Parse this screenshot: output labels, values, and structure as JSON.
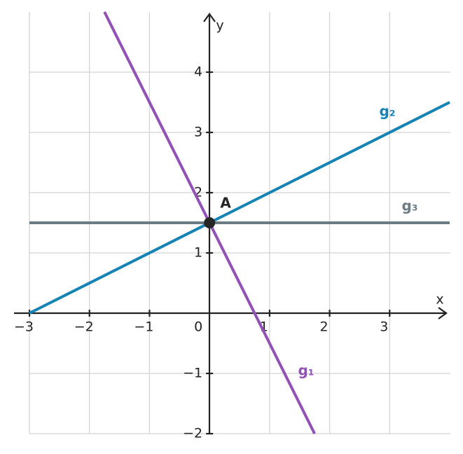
{
  "chart_data": {
    "type": "line",
    "xlabel": "x",
    "ylabel": "y",
    "xlim": [
      -3,
      4
    ],
    "ylim": [
      -2,
      5
    ],
    "xticks": [
      {
        "value": -3,
        "label": "−3"
      },
      {
        "value": -2,
        "label": "−2"
      },
      {
        "value": -1,
        "label": "−1"
      },
      0,
      1,
      2,
      3
    ],
    "yticks": [
      {
        "value": -2,
        "label": "−2"
      },
      {
        "value": -1,
        "label": "−1"
      },
      1,
      2,
      3,
      4
    ],
    "grid": true,
    "series": [
      {
        "name": "g₁",
        "color": "#9351b8",
        "x": [
          -1.75,
          1.75
        ],
        "values": [
          5,
          -2
        ]
      },
      {
        "name": "g₂",
        "color": "#1683b5",
        "x": [
          -3,
          4
        ],
        "values": [
          0,
          3.5
        ]
      },
      {
        "name": "g₃",
        "color": "#6b7c85",
        "x": [
          -3,
          4
        ],
        "values": [
          1.5,
          1.5
        ]
      }
    ],
    "points": [
      {
        "label": "A",
        "x": 0,
        "y": 1.5,
        "color": "#262626"
      }
    ]
  }
}
